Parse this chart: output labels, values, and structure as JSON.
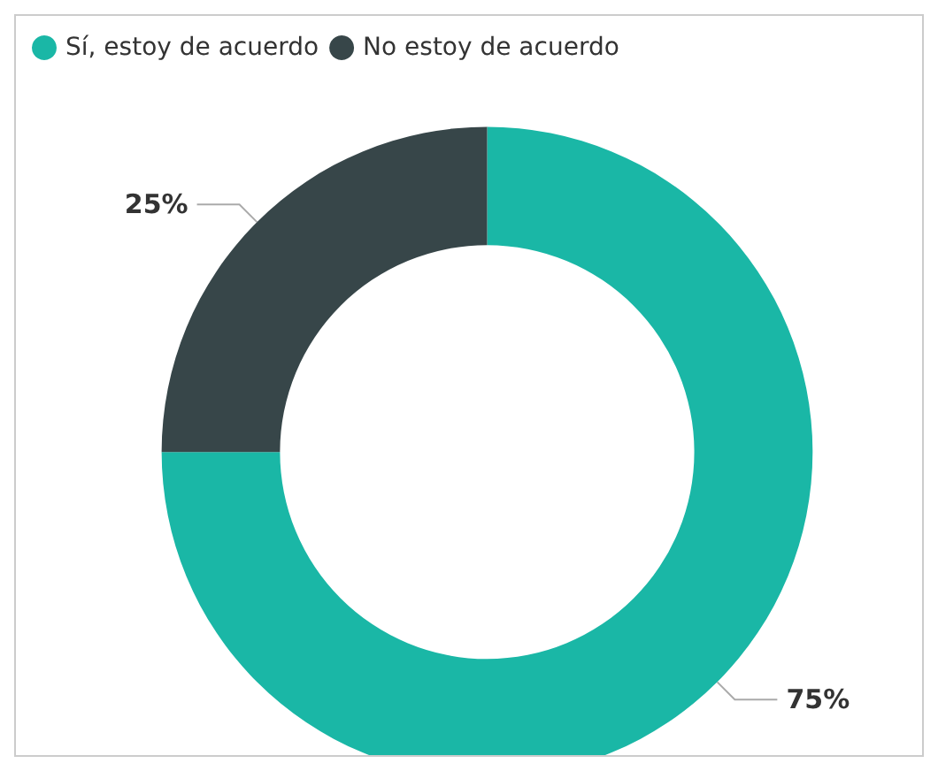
{
  "chart_data": {
    "type": "donut",
    "categories": [
      "Sí, estoy de acuerdo",
      "No estoy de acuerdo"
    ],
    "values": [
      75,
      25
    ],
    "colors": [
      "#1ab7a6",
      "#374649"
    ],
    "value_labels": [
      "75%",
      "25%"
    ],
    "legend": "top left"
  }
}
